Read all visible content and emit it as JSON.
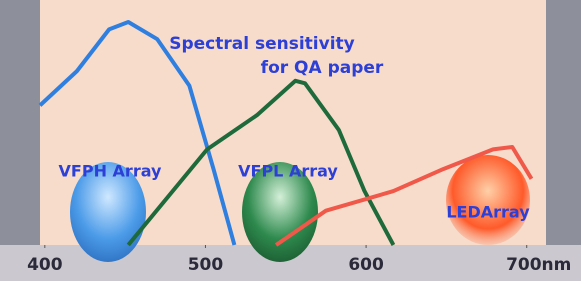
{
  "chart_data": {
    "type": "line",
    "annotations": [
      "Spectral sensitivity",
      "for QA paper",
      "VFPH Array",
      "VFPL Array",
      "LEDArray"
    ],
    "series": [
      {
        "color": "#2f7fe0",
        "x": [
          397,
          420,
          440,
          452,
          470,
          490,
          505,
          518
        ],
        "values": [
          57,
          71,
          88,
          91,
          84,
          65,
          31,
          0
        ]
      },
      {
        "color": "#1f6a3a",
        "x": [
          452,
          501,
          532,
          556,
          562,
          583,
          599,
          617
        ],
        "values": [
          0,
          39,
          53,
          67,
          66,
          47,
          22,
          0
        ]
      },
      {
        "color": "#f0584a",
        "x": [
          544,
          575,
          617,
          648,
          679,
          691,
          703
        ],
        "values": [
          0,
          14,
          22,
          31,
          39,
          40,
          27
        ]
      }
    ],
    "xlim": [
      397,
      712
    ],
    "ylim": [
      0,
      100
    ],
    "xticks": [
      400,
      500,
      600,
      {
        "value": 700,
        "label": "700nm"
      }
    ]
  }
}
